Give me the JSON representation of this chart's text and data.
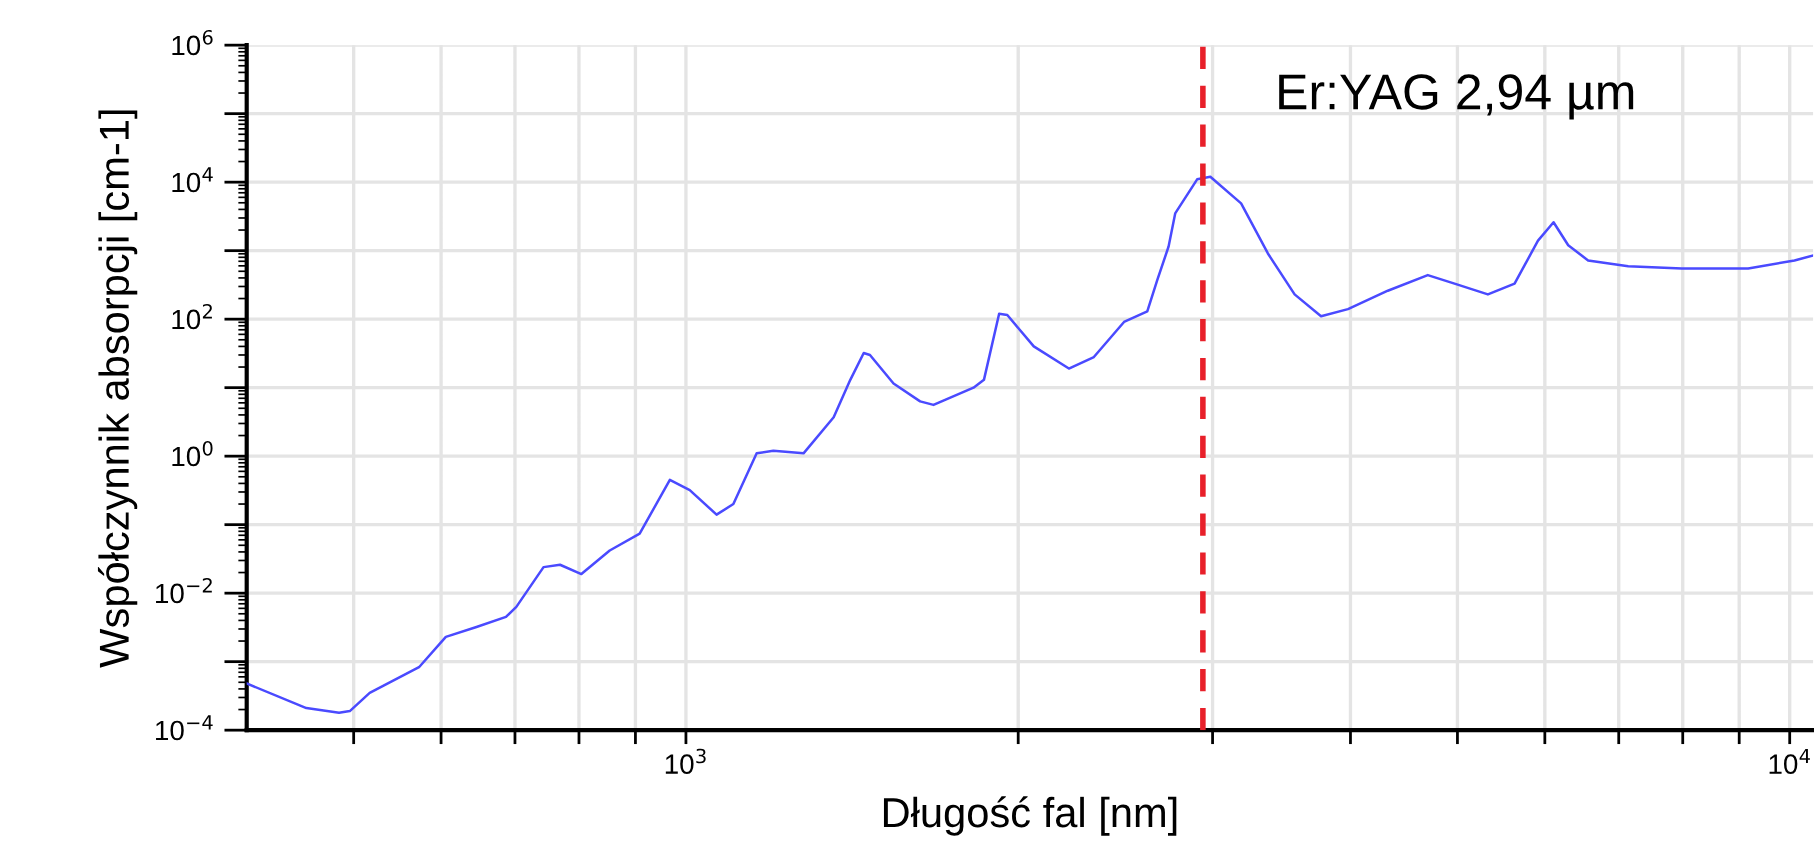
{
  "chart_data": {
    "type": "line",
    "xlabel": "Długość fal [nm]",
    "ylabel": "Współczynnik absorpcji [cm-1]",
    "log": "xy",
    "grid": true,
    "marker": "none",
    "line_style": "solid",
    "xlim": [
      400,
      10500
    ],
    "ylim": [
      0.0001,
      1000000
    ],
    "xticks": [
      {
        "value": 500,
        "label": null
      },
      {
        "value": 600,
        "label": null
      },
      {
        "value": 700,
        "label": null
      },
      {
        "value": 800,
        "label": null
      },
      {
        "value": 900,
        "label": null
      },
      {
        "value": 1000,
        "label": "10$^{3}$"
      },
      {
        "value": 2000,
        "label": null
      },
      {
        "value": 3000,
        "label": null
      },
      {
        "value": 4000,
        "label": null
      },
      {
        "value": 5000,
        "label": null
      },
      {
        "value": 6000,
        "label": null
      },
      {
        "value": 7000,
        "label": null
      },
      {
        "value": 8000,
        "label": null
      },
      {
        "value": 9000,
        "label": null
      },
      {
        "value": 10000,
        "label": "10$^{4}$"
      }
    ],
    "yticks": [
      {
        "value": 0.0001,
        "label": "10$^{−4}$"
      },
      {
        "value": 0.001,
        "label": null
      },
      {
        "value": 0.01,
        "label": "10$^{−2}$"
      },
      {
        "value": 0.1,
        "label": null
      },
      {
        "value": 1,
        "label": "10$^{0}$"
      },
      {
        "value": 10,
        "label": null
      },
      {
        "value": 100,
        "label": "10$^{2}$"
      },
      {
        "value": 1000,
        "label": null
      },
      {
        "value": 10000,
        "label": "10$^{4}$"
      },
      {
        "value": 100000,
        "label": null
      },
      {
        "value": 1000000,
        "label": "10$^{6}$"
      }
    ],
    "ref_lines": [
      {
        "axis": "x",
        "value": 2940,
        "label": "Er:YAG 2,94 µm",
        "color": "#e8202a",
        "line_style": "dashed"
      }
    ],
    "series": [
      {
        "color": "#4a4aff",
        "x": [
          400,
          453,
          485,
          496,
          517,
          573,
          606,
          646,
          687,
          702,
          743,
          769,
          804,
          853,
          908,
          967,
          1008,
          1066,
          1104,
          1159,
          1200,
          1278,
          1361,
          1409,
          1449,
          1468,
          1542,
          1630,
          1676,
          1822,
          1862,
          1922,
          1955,
          2066,
          2223,
          2342,
          2494,
          2618,
          2673,
          2737,
          2775,
          2905,
          2986,
          3184,
          3367,
          3560,
          3762,
          3979,
          4324,
          4700,
          4970,
          5328,
          5633,
          5915,
          6110,
          6300,
          6567,
          7140,
          7985,
          9170,
          10100,
          10500
        ],
        "values": [
          0.00048,
          0.00021,
          0.00018,
          0.00019,
          0.00035,
          0.00083,
          0.0023,
          0.0032,
          0.0045,
          0.0063,
          0.024,
          0.026,
          0.019,
          0.042,
          0.074,
          0.45,
          0.32,
          0.14,
          0.2,
          1.1,
          1.2,
          1.1,
          3.7,
          13,
          32,
          30,
          11.5,
          6.3,
          5.6,
          10,
          13,
          120,
          115,
          40,
          19,
          28,
          91,
          130,
          370,
          1150,
          3500,
          11000,
          12000,
          4900,
          910,
          230,
          110,
          140,
          260,
          440,
          330,
          230,
          330,
          1400,
          2600,
          1200,
          720,
          590,
          550,
          550,
          720,
          850
        ]
      }
    ]
  }
}
